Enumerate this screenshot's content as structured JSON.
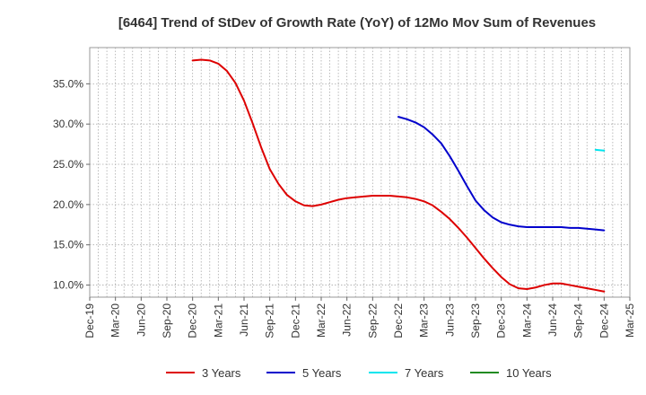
{
  "chart_data": {
    "type": "line",
    "title": "[6464]  Trend of StDev of Growth Rate (YoY) of 12Mo Mov Sum of Revenues",
    "xlabel": "",
    "ylabel": "",
    "x_ticks": [
      "Dec-19",
      "Mar-20",
      "Jun-20",
      "Sep-20",
      "Dec-20",
      "Mar-21",
      "Jun-21",
      "Sep-21",
      "Dec-21",
      "Mar-22",
      "Jun-22",
      "Sep-22",
      "Dec-22",
      "Mar-23",
      "Jun-23",
      "Sep-23",
      "Dec-23",
      "Mar-24",
      "Jun-24",
      "Sep-24",
      "Dec-24",
      "Mar-25"
    ],
    "y_ticks": [
      "10.0%",
      "15.0%",
      "20.0%",
      "25.0%",
      "30.0%",
      "35.0%"
    ],
    "y_tick_values": [
      10,
      15,
      20,
      25,
      30,
      35
    ],
    "ylim": [
      8.5,
      39.5
    ],
    "x_range_months": [
      0,
      63
    ],
    "grid": true,
    "legend_position": "bottom",
    "series": [
      {
        "name": "3 Years",
        "color": "#dd0000",
        "x_months": [
          12,
          13,
          14,
          15,
          16,
          17,
          18,
          19,
          20,
          21,
          22,
          23,
          24,
          25,
          26,
          27,
          28,
          29,
          30,
          31,
          32,
          33,
          34,
          35,
          36,
          37,
          38,
          39,
          40,
          41,
          42,
          43,
          44,
          45,
          46,
          47,
          48,
          49,
          50,
          51,
          52,
          53,
          54,
          55,
          56,
          57,
          58,
          59,
          60
        ],
        "values": [
          37.9,
          38.0,
          37.9,
          37.5,
          36.6,
          35.1,
          32.9,
          30.1,
          27.1,
          24.4,
          22.6,
          21.2,
          20.4,
          19.9,
          19.8,
          20.0,
          20.3,
          20.6,
          20.8,
          20.9,
          21.0,
          21.1,
          21.1,
          21.1,
          21.0,
          20.9,
          20.7,
          20.4,
          19.9,
          19.1,
          18.2,
          17.1,
          15.9,
          14.6,
          13.3,
          12.1,
          11.0,
          10.1,
          9.6,
          9.5,
          9.7,
          10.0,
          10.2,
          10.2,
          10.0,
          9.8,
          9.6,
          9.4,
          9.2
        ]
      },
      {
        "name": "5 Years",
        "color": "#0000cc",
        "x_months": [
          36,
          37,
          38,
          39,
          40,
          41,
          42,
          43,
          44,
          45,
          46,
          47,
          48,
          49,
          50,
          51,
          52,
          53,
          54,
          55,
          56,
          57,
          58,
          59,
          60
        ],
        "values": [
          30.9,
          30.6,
          30.2,
          29.6,
          28.7,
          27.6,
          26.0,
          24.2,
          22.3,
          20.5,
          19.3,
          18.4,
          17.8,
          17.5,
          17.3,
          17.2,
          17.2,
          17.2,
          17.2,
          17.2,
          17.1,
          17.1,
          17.0,
          16.9,
          16.8
        ]
      },
      {
        "name": "7 Years",
        "color": "#00e5ee",
        "x_months": [
          59,
          60
        ],
        "values": [
          26.8,
          26.7
        ]
      },
      {
        "name": "10 Years",
        "color": "#228b22",
        "x_months": [],
        "values": []
      }
    ]
  }
}
